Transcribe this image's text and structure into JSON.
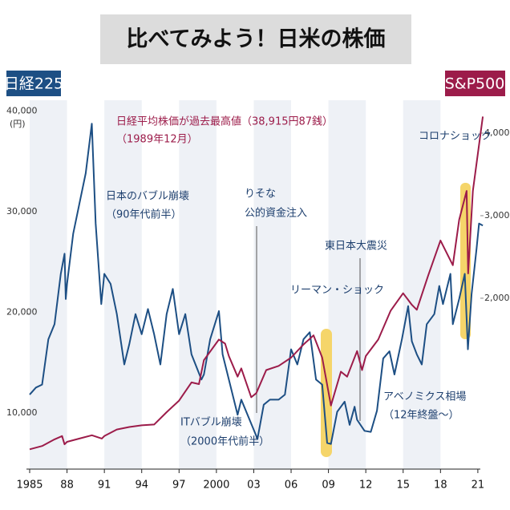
{
  "chart_data": {
    "type": "line",
    "title": "比べてみよう！日米の株価",
    "y_label": "日経225",
    "y2_label": "S&P500",
    "y_unit": "(円)",
    "annotations": [
      "日経平均株価が過去最高値（38,915円87銭）",
      "（1989年12月）",
      "日本のバブル崩壊",
      "（90年代前半）",
      "りそな",
      "公的資金注入",
      "東日本大震災",
      "リーマン・ショック",
      "コロナショック",
      "ITバブル崩壊",
      "（2000年代前半）",
      "アベノミクス相場",
      "（12年終盤～）"
    ],
    "xlim": [
      1985,
      2021.2
    ],
    "xticks": [
      1985,
      {
        "value": 1988,
        "label": "88"
      },
      {
        "value": 1991,
        "label": "91"
      },
      {
        "value": 1994,
        "label": "94"
      },
      {
        "value": 1997,
        "label": "97"
      },
      2000,
      {
        "value": 2003,
        "label": "03"
      },
      {
        "value": 2006,
        "label": "06"
      },
      {
        "value": 2009,
        "label": "09"
      },
      {
        "value": 2012,
        "label": "12"
      },
      {
        "value": 2015,
        "label": "15"
      },
      {
        "value": 2018,
        "label": "18"
      },
      {
        "value": 2021,
        "label": "21"
      }
    ],
    "ylim": [
      4600,
      40850
    ],
    "yticks": [
      {
        "value": 10000,
        "label": "10,000"
      },
      {
        "value": 20000,
        "label": "20,000"
      },
      {
        "value": 30000,
        "label": "30,000"
      },
      {
        "value": 40000,
        "label": "40,000"
      }
    ],
    "y2lim": [
      -70,
      4350
    ],
    "y2ticks": [
      {
        "value": 2000,
        "label": "2,000"
      },
      {
        "value": 3000,
        "label": "3,000"
      },
      {
        "value": 4000,
        "label": "4,000"
      }
    ],
    "series": [
      {
        "name": "日経225",
        "color": "#1d4f84",
        "x": [
          1985.0,
          1985.5,
          1986.0,
          1986.5,
          1987.0,
          1987.5,
          1987.8,
          1987.9,
          1988.0,
          1988.5,
          1989.0,
          1989.5,
          1989.99,
          1990.3,
          1990.75,
          1991.0,
          1991.5,
          1992.0,
          1992.6,
          1993.0,
          1993.5,
          1994.0,
          1994.5,
          1995.0,
          1995.5,
          1996.0,
          1996.5,
          1997.0,
          1997.5,
          1998.0,
          1998.8,
          1999.0,
          1999.5,
          2000.2,
          2000.5,
          2001.0,
          2001.7,
          2002.0,
          2002.5,
          2003.3,
          2003.8,
          2004.3,
          2005.0,
          2005.5,
          2006.0,
          2006.5,
          2007.0,
          2007.5,
          2008.0,
          2008.5,
          2008.9,
          2009.2,
          2009.7,
          2010.3,
          2010.7,
          2011.1,
          2011.3,
          2011.9,
          2012.4,
          2012.9,
          2013.4,
          2013.9,
          2014.3,
          2014.9,
          2015.4,
          2015.7,
          2016.1,
          2016.5,
          2016.9,
          2017.5,
          2017.9,
          2018.2,
          2018.8,
          2018.99,
          2019.5,
          2019.95,
          2020.2,
          2020.5,
          2020.9,
          2021.1,
          2021.4
        ],
        "values": [
          12000,
          12700,
          13000,
          17500,
          19000,
          24000,
          26000,
          21500,
          23000,
          28000,
          31000,
          34000,
          38915,
          29000,
          21000,
          24000,
          23000,
          20000,
          15000,
          17000,
          20000,
          18000,
          20500,
          18000,
          15000,
          20000,
          22500,
          18000,
          20000,
          16000,
          13500,
          14000,
          17500,
          20300,
          16000,
          13500,
          10000,
          11500,
          10000,
          7600,
          11000,
          11500,
          11500,
          12000,
          16500,
          15000,
          17500,
          18200,
          13500,
          13000,
          7200,
          7100,
          10300,
          11300,
          9000,
          10800,
          9500,
          8400,
          8300,
          10400,
          15600,
          16300,
          14000,
          17500,
          20800,
          17300,
          16000,
          15000,
          19000,
          20000,
          22800,
          21000,
          24000,
          19000,
          21500,
          24000,
          16500,
          22000,
          26500,
          29000,
          28800
        ]
      },
      {
        "name": "S&P500",
        "color": "#9c1c4a",
        "axis": "y2",
        "x": [
          1985.0,
          1986.0,
          1987.0,
          1987.6,
          1987.8,
          1988.0,
          1989.0,
          1990.0,
          1990.8,
          1991.0,
          1992.0,
          1993.0,
          1994.0,
          1995.0,
          1996.0,
          1997.0,
          1998.0,
          1998.6,
          1999.0,
          2000.2,
          2000.7,
          2001.0,
          2001.7,
          2002.0,
          2002.8,
          2003.2,
          2004.0,
          2005.0,
          2006.0,
          2007.0,
          2007.8,
          2008.5,
          2009.2,
          2010.0,
          2010.5,
          2011.3,
          2011.7,
          2012.0,
          2013.0,
          2014.0,
          2015.0,
          2015.7,
          2016.1,
          2017.0,
          2018.0,
          2018.99,
          2019.5,
          2020.1,
          2020.22,
          2020.6,
          2021.0,
          2021.4
        ],
        "values": [
          170,
          210,
          290,
          330,
          230,
          260,
          300,
          340,
          300,
          330,
          410,
          440,
          460,
          470,
          620,
          760,
          980,
          960,
          1250,
          1500,
          1450,
          1300,
          1050,
          1150,
          800,
          850,
          1130,
          1180,
          1280,
          1440,
          1550,
          1280,
          700,
          1110,
          1050,
          1360,
          1130,
          1300,
          1500,
          1850,
          2060,
          1920,
          1860,
          2270,
          2700,
          2400,
          2950,
          3300,
          2300,
          3300,
          3750,
          4200
        ]
      }
    ]
  }
}
